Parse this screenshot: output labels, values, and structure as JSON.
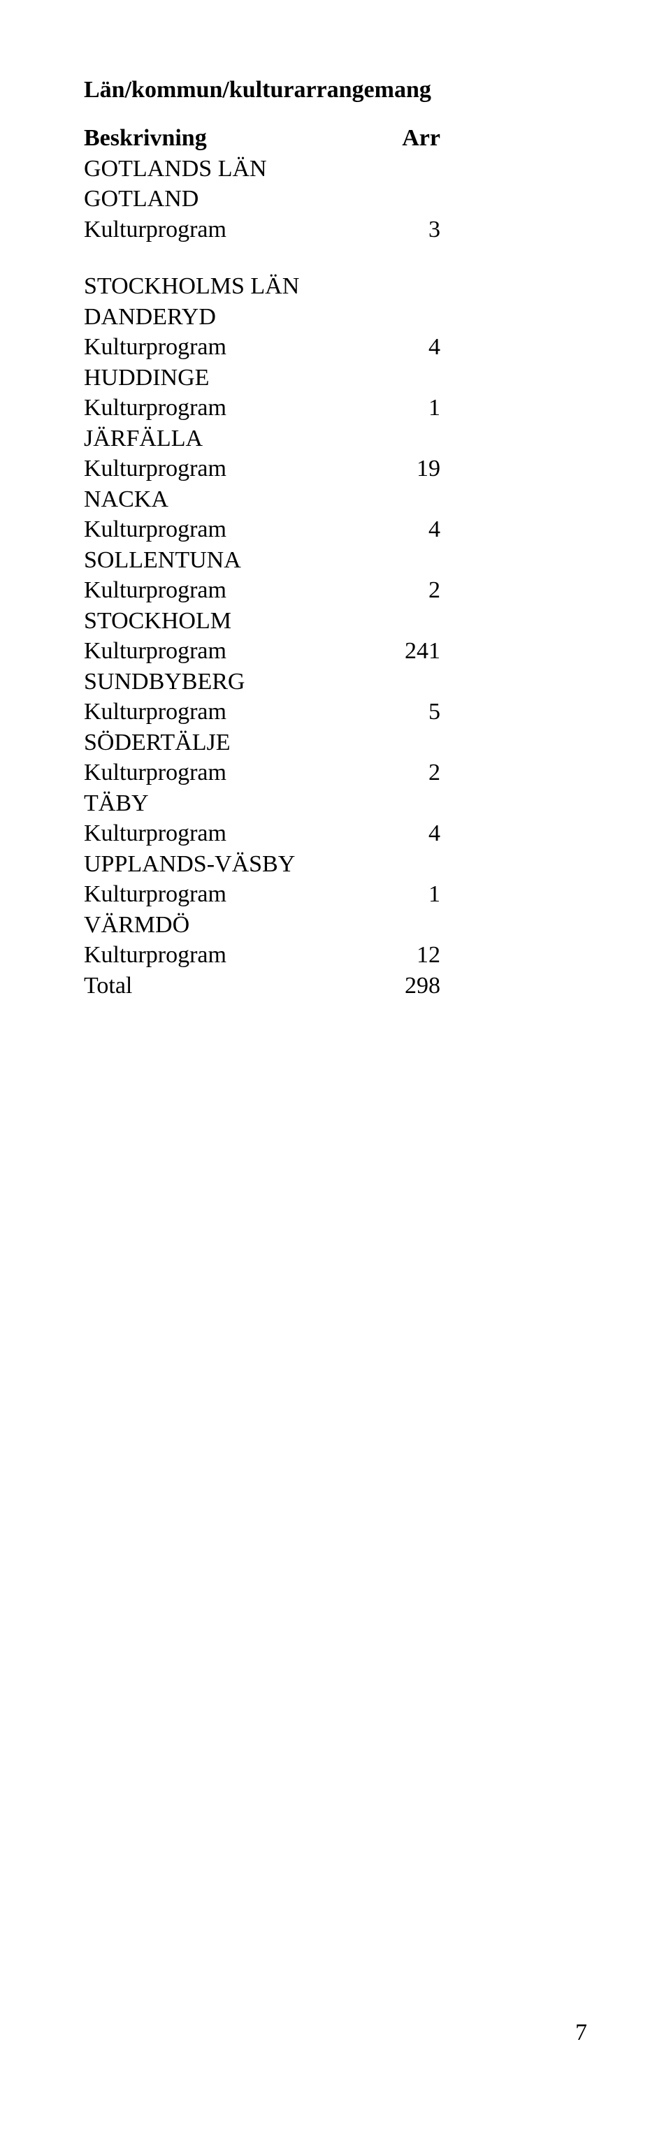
{
  "heading": "Län/kommun/kulturarrangemang",
  "header": {
    "label": "Beskrivning",
    "value": "Arr"
  },
  "block1": {
    "region": "GOTLANDS LÄN",
    "rows": [
      {
        "label": "GOTLAND",
        "value": ""
      },
      {
        "label": "Kulturprogram",
        "value": "3"
      }
    ]
  },
  "block2": {
    "region": "STOCKHOLMS LÄN",
    "rows": [
      {
        "label": "DANDERYD",
        "value": ""
      },
      {
        "label": "Kulturprogram",
        "value": "4"
      },
      {
        "label": "HUDDINGE",
        "value": ""
      },
      {
        "label": "Kulturprogram",
        "value": "1"
      },
      {
        "label": "JÄRFÄLLA",
        "value": ""
      },
      {
        "label": "Kulturprogram",
        "value": "19"
      },
      {
        "label": "NACKA",
        "value": ""
      },
      {
        "label": "Kulturprogram",
        "value": "4"
      },
      {
        "label": "SOLLENTUNA",
        "value": ""
      },
      {
        "label": "Kulturprogram",
        "value": "2"
      },
      {
        "label": "STOCKHOLM",
        "value": ""
      },
      {
        "label": "Kulturprogram",
        "value": "241"
      },
      {
        "label": "SUNDBYBERG",
        "value": ""
      },
      {
        "label": "Kulturprogram",
        "value": "5"
      },
      {
        "label": "SÖDERTÄLJE",
        "value": ""
      },
      {
        "label": "Kulturprogram",
        "value": "2"
      },
      {
        "label": "TÄBY",
        "value": ""
      },
      {
        "label": "Kulturprogram",
        "value": "4"
      },
      {
        "label": "UPPLANDS-VÄSBY",
        "value": ""
      },
      {
        "label": "Kulturprogram",
        "value": "1"
      },
      {
        "label": "VÄRMDÖ",
        "value": ""
      },
      {
        "label": "Kulturprogram",
        "value": "12"
      },
      {
        "label": "Total",
        "value": "298"
      }
    ]
  },
  "pageNumber": "7"
}
